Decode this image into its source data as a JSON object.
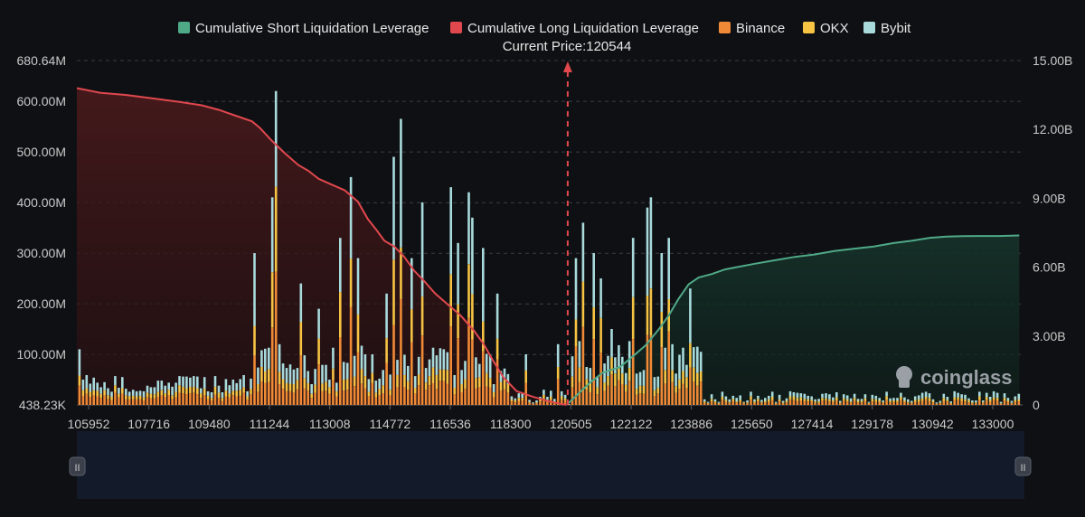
{
  "chart_data": {
    "type": "bar",
    "title": "",
    "current_price_label": "Current Price:120544",
    "current_price": 120544,
    "xlabel": "",
    "ylabel_left": "",
    "ylabel_right": "",
    "legend": [
      {
        "key": "short",
        "label": "Cumulative Short Liquidation Leverage",
        "color": "#4fa987",
        "shape": "square"
      },
      {
        "key": "long",
        "label": "Cumulative Long Liquidation Leverage",
        "color": "#e0484e",
        "shape": "square"
      },
      {
        "key": "binance",
        "label": "Binance",
        "color": "#f08a36",
        "shape": "square"
      },
      {
        "key": "okx",
        "label": "OKX",
        "color": "#f6c343",
        "shape": "square"
      },
      {
        "key": "bybit",
        "label": "Bybit",
        "color": "#a8dadc",
        "shape": "square"
      }
    ],
    "x_tick_labels": [
      "105952",
      "107716",
      "109480",
      "111244",
      "113008",
      "114772",
      "116536",
      "118300",
      "120505",
      "122122",
      "123886",
      "125650",
      "127414",
      "129178",
      "130942",
      "133000"
    ],
    "x_range": [
      105700,
      134300
    ],
    "y_left": {
      "range": [
        438230,
        680640000
      ],
      "tick_values": [
        438230,
        100000000,
        200000000,
        300000000,
        400000000,
        500000000,
        600000000,
        680640000
      ],
      "tick_labels": [
        "438.23K",
        "100.00M",
        "200.00M",
        "300.00M",
        "400.00M",
        "500.00M",
        "600.00M",
        "680.64M"
      ]
    },
    "y_right": {
      "range": [
        0,
        15000000000
      ],
      "tick_values": [
        0,
        3000000000,
        6000000000,
        9000000000,
        12000000000,
        15000000000
      ],
      "tick_labels": [
        "0",
        "3.00B",
        "6.00B",
        "9.00B",
        "12.00B",
        "15.00B"
      ]
    },
    "long_cumulative": {
      "x": [
        105700,
        106400,
        107200,
        108000,
        108800,
        109480,
        110000,
        110500,
        111000,
        111244,
        111600,
        112000,
        112400,
        112700,
        113008,
        113400,
        113800,
        114200,
        114500,
        114772,
        115000,
        115300,
        115600,
        115900,
        116200,
        116536,
        116900,
        117300,
        117700,
        118000,
        118300,
        118600,
        119000,
        119500,
        120000,
        120300,
        120505
      ],
      "values": [
        13800000000.0,
        13600000000.0,
        13500000000.0,
        13350000000.0,
        13200000000.0,
        13050000000.0,
        12850000000.0,
        12600000000.0,
        12350000000.0,
        12050000000.0,
        11500000000.0,
        10950000000.0,
        10450000000.0,
        10200000000.0,
        9850000000.0,
        9600000000.0,
        9350000000.0,
        8850000000.0,
        8100000000.0,
        7600000000.0,
        7150000000.0,
        6900000000.0,
        6450000000.0,
        5850000000.0,
        5400000000.0,
        4850000000.0,
        4400000000.0,
        3900000000.0,
        3250000000.0,
        2650000000.0,
        1900000000.0,
        1200000000.0,
        600000000.0,
        350000000.0,
        150000000.0,
        50000000.0,
        0
      ]
    },
    "short_cumulative": {
      "x": [
        120544,
        120800,
        121200,
        121600,
        122122,
        122500,
        122900,
        123300,
        123600,
        123886,
        124200,
        124500,
        124900,
        125300,
        125650,
        126200,
        126800,
        127414,
        128000,
        128600,
        129178,
        129800,
        130400,
        130942,
        131500,
        132000,
        132500,
        133000,
        133600,
        134200
      ],
      "values": [
        50000000.0,
        400000000.0,
        950000000.0,
        1400000000.0,
        1650000000.0,
        2100000000.0,
        2600000000.0,
        3300000000.0,
        3900000000.0,
        4600000000.0,
        5250000000.0,
        5550000000.0,
        5700000000.0,
        5900000000.0,
        6000000000.0,
        6150000000.0,
        6300000000.0,
        6450000000.0,
        6550000000.0,
        6700000000.0,
        6800000000.0,
        6900000000.0,
        7050000000.0,
        7150000000.0,
        7280000000.0,
        7330000000.0,
        7350000000.0,
        7360000000.0,
        7360000000.0,
        7380000000.0
      ]
    },
    "bars_binance": [],
    "bars_okx": [],
    "bars_bybit": [],
    "grid": true,
    "legend_position": "top-center"
  },
  "watermark": {
    "text": "coinglass"
  },
  "scrollbar": {
    "handle_left_glyph": "II",
    "handle_right_glyph": "II"
  }
}
